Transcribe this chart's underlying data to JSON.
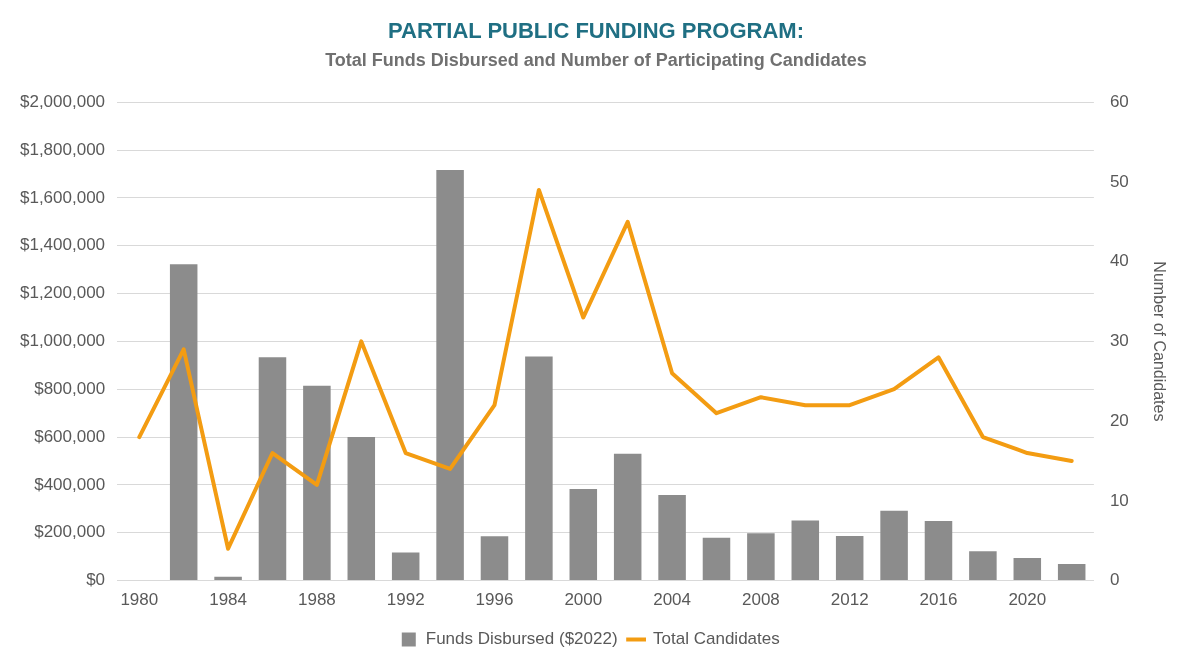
{
  "chart_data": {
    "type": "bar",
    "title": "PARTIAL PUBLIC FUNDING PROGRAM:",
    "subtitle": "Total Funds Disbursed and Number of Participating Candidates",
    "y2label": "Number of Candidates",
    "categories": [
      "1980",
      null,
      "1984",
      null,
      "1988",
      null,
      "1992",
      null,
      "1996",
      null,
      "2000",
      null,
      "2004",
      null,
      "2008",
      null,
      "2012",
      null,
      "2016",
      null,
      "2020",
      null
    ],
    "series": [
      {
        "name": "Funds Disbursed ($2022)",
        "color": "#8c8c8c",
        "values": [
          3000,
          1323000,
          16000,
          934000,
          815000,
          600000,
          117000,
          1717000,
          185000,
          937000,
          383000,
          530000,
          358000,
          179000,
          198000,
          251000,
          186000,
          292000,
          249000,
          123000,
          95000,
          69000
        ]
      },
      {
        "name": "Total Candidates",
        "type": "line",
        "axis": "y2",
        "color": "#f39c12",
        "values": [
          18,
          29,
          4,
          16,
          12,
          30,
          16,
          14,
          22,
          49,
          33,
          45,
          26,
          21,
          23,
          22,
          22,
          24,
          28,
          18,
          16,
          15
        ]
      }
    ],
    "ylim": [
      0,
      2000000
    ],
    "yticks": [
      {
        "value": 0,
        "label": "$0"
      },
      {
        "value": 200000,
        "label": "$200,000"
      },
      {
        "value": 400000,
        "label": "$400,000"
      },
      {
        "value": 600000,
        "label": "$600,000"
      },
      {
        "value": 800000,
        "label": "$800,000"
      },
      {
        "value": 1000000,
        "label": "$1,000,000"
      },
      {
        "value": 1200000,
        "label": "$1,200,000"
      },
      {
        "value": 1400000,
        "label": "$1,400,000"
      },
      {
        "value": 1600000,
        "label": "$1,600,000"
      },
      {
        "value": 1800000,
        "label": "$1,800,000"
      },
      {
        "value": 2000000,
        "label": "$2,000,000"
      }
    ],
    "y2lim": [
      0,
      60
    ],
    "y2ticks": [
      0,
      10,
      20,
      30,
      40,
      50,
      60
    ],
    "grid": "y",
    "legend": "bottom",
    "marker": "none",
    "line_style": "solid"
  }
}
